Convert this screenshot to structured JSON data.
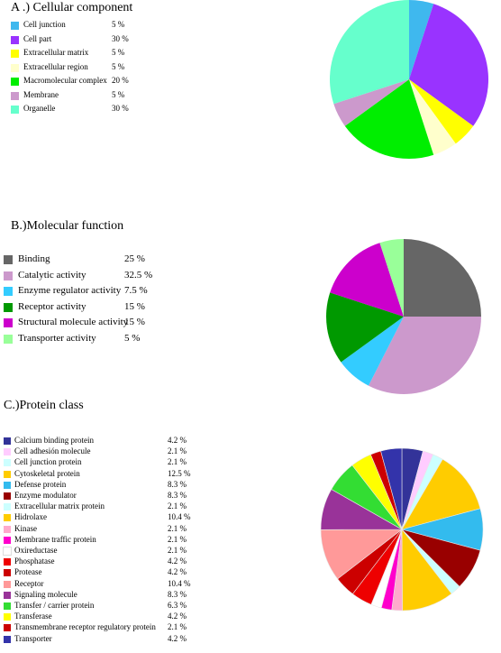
{
  "chart_data": [
    {
      "type": "pie",
      "title": "A .) Cellular component",
      "categories": [
        "Cell junction",
        "Cell part",
        "Extracellular matrix",
        "Extracellular region",
        "Macromolecular complex",
        "Membrane",
        "Organelle"
      ],
      "values": [
        5,
        30,
        5,
        5,
        20,
        5,
        30
      ],
      "value_labels": [
        "5 %",
        "30 %",
        "5 %",
        "5 %",
        "20 %",
        "5 %",
        "30 %"
      ],
      "colors": [
        "#3fb8ee",
        "#9933ff",
        "#ffff00",
        "#ffffcc",
        "#00ee00",
        "#cc99cc",
        "#66ffcc"
      ],
      "legend": "left"
    },
    {
      "type": "pie",
      "title": "B.)Molecular function",
      "categories": [
        "Binding",
        "Catalytic activity",
        "Enzyme regulator activity",
        "Receptor activity",
        "Structural molecule activity",
        "Transporter activity"
      ],
      "values": [
        25,
        32.5,
        7.5,
        15,
        15,
        5
      ],
      "value_labels": [
        "25 %",
        "32.5 %",
        "7.5 %",
        "15 %",
        "15 %",
        "5 %"
      ],
      "colors": [
        "#666666",
        "#cc99cc",
        "#33ccff",
        "#009900",
        "#cc00cc",
        "#99ff99"
      ],
      "legend": "left"
    },
    {
      "type": "pie",
      "title": "C.)Protein class",
      "categories": [
        "Calcium binding protein",
        "Cell adhesión molecule",
        "Cell junction protein",
        "Cytoskeletal protein",
        "Defense protein",
        "Enzyme modulator",
        "Extracellular matrix protein",
        "Hidrolaxe",
        "Kinase",
        "Membrane traffic protein",
        "Oxireductase",
        "Phosphatase",
        "Protease",
        "Receptor",
        "Signaling molecule",
        "Transfer / carrier protein",
        "Transferase",
        "Transmembrane receptor regulatory protein",
        "Transporter"
      ],
      "values": [
        4.2,
        2.1,
        2.1,
        12.5,
        8.3,
        8.3,
        2.1,
        10.4,
        2.1,
        2.1,
        2.1,
        4.2,
        4.2,
        10.4,
        8.3,
        6.3,
        4.2,
        2.1,
        4.2
      ],
      "value_labels": [
        "4.2 %",
        "2.1 %",
        "2.1 %",
        "12.5 %",
        "8.3 %",
        "8.3 %",
        "2.1 %",
        "10.4 %",
        "2.1 %",
        "2.1 %",
        "2.1 %",
        "4.2 %",
        "4.2 %",
        "10.4 %",
        "8.3 %",
        "6.3 %",
        "4.2 %",
        "2.1 %",
        "4.2 %"
      ],
      "colors": [
        "#333399",
        "#ffccff",
        "#ccffff",
        "#ffcc00",
        "#33bbee",
        "#990000",
        "#ccffff",
        "#ffcc00",
        "#ffaacc",
        "#ff00cc",
        "#ffffff",
        "#ee0000",
        "#cc0000",
        "#ff9999",
        "#993399",
        "#33dd33",
        "#ffff00",
        "#cc0000",
        "#3333aa"
      ],
      "legend": "left"
    }
  ]
}
